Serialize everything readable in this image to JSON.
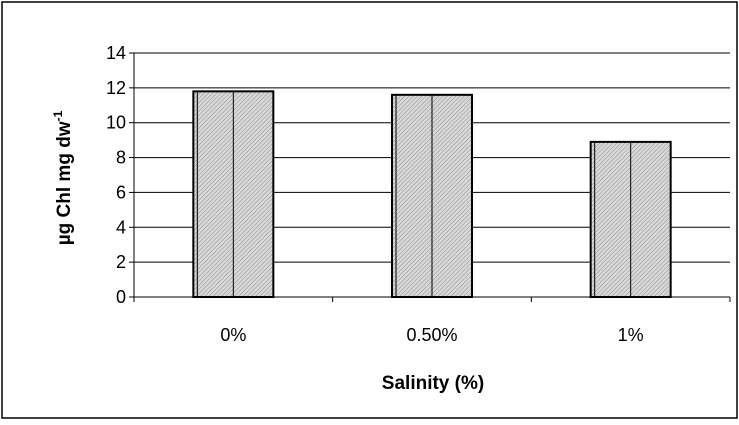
{
  "chart_data": {
    "type": "bar",
    "title": "",
    "xlabel": "Salinity (%)",
    "ylabel": {
      "main": "µg Chl mg dw",
      "superscript": "-1"
    },
    "categories": [
      "0%",
      "0.50%",
      "1%"
    ],
    "values": [
      11.8,
      11.6,
      8.9
    ],
    "ylim": [
      0,
      14
    ],
    "yticks": [
      "0",
      "2",
      "4",
      "6",
      "8",
      "10",
      "12",
      "14"
    ],
    "grid": true,
    "legend": "none"
  },
  "colors": {
    "bar_fill": "#d9d9d9",
    "bar_hatch": "#8c8c8c",
    "bar_stroke": "#000000",
    "gridline": "#000000",
    "frame": "#000000",
    "background": "#ffffff"
  }
}
